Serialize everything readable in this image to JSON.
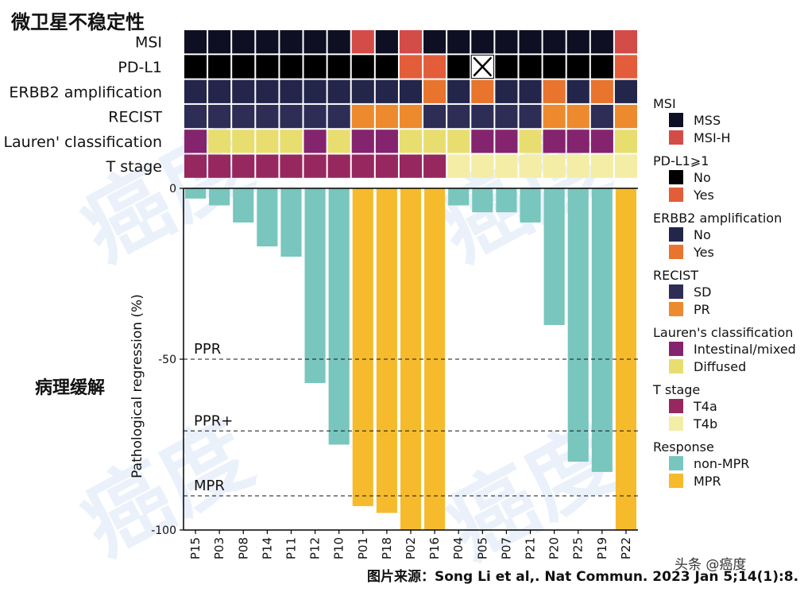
{
  "texts": {
    "title_cn": "微卫星不稳定性",
    "regression_cn": "病理缓解",
    "source": "图片来源：Song Li et al,. Nat Commun. 2023 Jan 5;14(1):8.",
    "watermark_tag": "头条 @癌度",
    "watermark_big": "癌度"
  },
  "colors": {
    "MSS": "#0f0f24",
    "MSI-H": "#d34c48",
    "PDL1_No": "#000000",
    "PDL1_Yes": "#e35d3b",
    "ERBB2_No": "#23254a",
    "ERBB2_Yes": "#e8742d",
    "SD": "#2e2d55",
    "PR": "#ee8a2e",
    "Intestinal": "#85246e",
    "Diffused": "#e8de70",
    "T4a": "#97275f",
    "T4b": "#f4eda6",
    "non-MPR": "#78c6bd",
    "MPR": "#f6bb2c"
  },
  "chart_data": {
    "type": "bar",
    "ylabel": "Pathological regression (%)",
    "ylim": [
      -100,
      0
    ],
    "yticks": [
      0,
      -50,
      -100
    ],
    "categories": [
      "P15",
      "P03",
      "P08",
      "P14",
      "P11",
      "P12",
      "P10",
      "P01",
      "P18",
      "P02",
      "P16",
      "P04",
      "P05",
      "P07",
      "P21",
      "P20",
      "P25",
      "P19",
      "P22"
    ],
    "values": [
      -3,
      -5,
      -10,
      -17,
      -20,
      -57,
      -75,
      -93,
      -95,
      -100,
      -100,
      -5,
      -7,
      -7,
      -10,
      -40,
      -80,
      -83,
      -100
    ],
    "response": [
      "non-MPR",
      "non-MPR",
      "non-MPR",
      "non-MPR",
      "non-MPR",
      "non-MPR",
      "non-MPR",
      "MPR",
      "MPR",
      "MPR",
      "MPR",
      "non-MPR",
      "non-MPR",
      "non-MPR",
      "non-MPR",
      "non-MPR",
      "non-MPR",
      "non-MPR",
      "MPR"
    ],
    "reference_lines": [
      {
        "label": "PPR",
        "value": -50
      },
      {
        "label": "PPR+",
        "value": -71
      },
      {
        "label": "MPR",
        "value": -90
      }
    ],
    "heatmap": {
      "rows": [
        {
          "label": "MSI",
          "values": [
            "MSS",
            "MSS",
            "MSS",
            "MSS",
            "MSS",
            "MSS",
            "MSS",
            "MSI-H",
            "MSS",
            "MSI-H",
            "MSS",
            "MSS",
            "MSS",
            "MSS",
            "MSS",
            "MSS",
            "MSS",
            "MSS",
            "MSI-H"
          ]
        },
        {
          "label": "PD-L1",
          "values": [
            "PDL1_No",
            "PDL1_No",
            "PDL1_No",
            "PDL1_No",
            "PDL1_No",
            "PDL1_No",
            "PDL1_No",
            "PDL1_No",
            "PDL1_No",
            "PDL1_Yes",
            "PDL1_Yes",
            "PDL1_No",
            "NA",
            "PDL1_No",
            "PDL1_No",
            "PDL1_No",
            "PDL1_No",
            "PDL1_No",
            "PDL1_Yes"
          ]
        },
        {
          "label": "ERBB2 amplification",
          "values": [
            "ERBB2_No",
            "ERBB2_No",
            "ERBB2_No",
            "ERBB2_No",
            "ERBB2_No",
            "ERBB2_No",
            "ERBB2_No",
            "ERBB2_No",
            "ERBB2_No",
            "ERBB2_No",
            "ERBB2_Yes",
            "ERBB2_No",
            "ERBB2_Yes",
            "ERBB2_No",
            "ERBB2_No",
            "ERBB2_Yes",
            "ERBB2_No",
            "ERBB2_Yes",
            "ERBB2_No"
          ]
        },
        {
          "label": "RECIST",
          "values": [
            "SD",
            "SD",
            "SD",
            "SD",
            "SD",
            "SD",
            "SD",
            "PR",
            "PR",
            "PR",
            "SD",
            "SD",
            "SD",
            "SD",
            "SD",
            "PR",
            "PR",
            "SD",
            "PR"
          ]
        },
        {
          "label": "Lauren' classification",
          "values": [
            "Intestinal",
            "Diffused",
            "Diffused",
            "Diffused",
            "Diffused",
            "Intestinal",
            "Diffused",
            "Intestinal",
            "Intestinal",
            "Diffused",
            "Diffused",
            "Diffused",
            "Intestinal",
            "Intestinal",
            "Diffused",
            "Intestinal",
            "Intestinal",
            "Intestinal",
            "Diffused"
          ]
        },
        {
          "label": "T stage",
          "values": [
            "T4a",
            "T4a",
            "T4a",
            "T4a",
            "T4a",
            "T4a",
            "T4a",
            "T4a",
            "T4a",
            "T4a",
            "T4a",
            "T4b",
            "T4b",
            "T4b",
            "T4b",
            "T4b",
            "T4b",
            "T4b",
            "T4b"
          ]
        }
      ]
    },
    "legend": [
      {
        "title": "MSI",
        "items": [
          {
            "label": "MSS",
            "key": "MSS"
          },
          {
            "label": "MSI-H",
            "key": "MSI-H"
          }
        ]
      },
      {
        "title": "PD-L1⩾1",
        "items": [
          {
            "label": "No",
            "key": "PDL1_No"
          },
          {
            "label": "Yes",
            "key": "PDL1_Yes"
          }
        ]
      },
      {
        "title": "ERBB2 amplification",
        "items": [
          {
            "label": "No",
            "key": "ERBB2_No"
          },
          {
            "label": "Yes",
            "key": "ERBB2_Yes"
          }
        ]
      },
      {
        "title": "RECIST",
        "items": [
          {
            "label": "SD",
            "key": "SD"
          },
          {
            "label": "PR",
            "key": "PR"
          }
        ]
      },
      {
        "title": "Lauren's classification",
        "items": [
          {
            "label": "Intestinal/mixed",
            "key": "Intestinal"
          },
          {
            "label": "Diffused",
            "key": "Diffused"
          }
        ]
      },
      {
        "title": "T stage",
        "items": [
          {
            "label": "T4a",
            "key": "T4a"
          },
          {
            "label": "T4b",
            "key": "T4b"
          }
        ]
      },
      {
        "title": "Response",
        "items": [
          {
            "label": "non-MPR",
            "key": "non-MPR"
          },
          {
            "label": "MPR",
            "key": "MPR"
          }
        ]
      }
    ]
  }
}
